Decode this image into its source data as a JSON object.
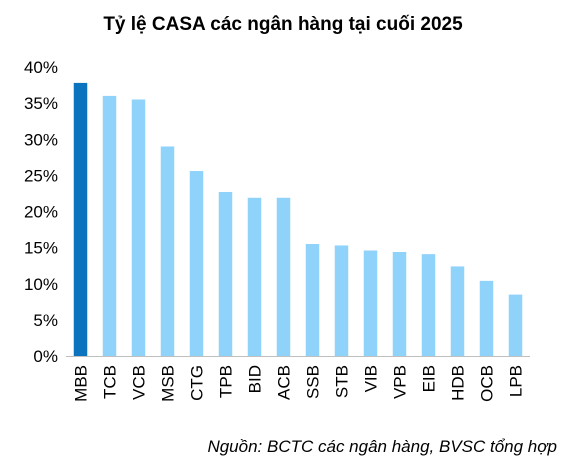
{
  "colors": {
    "highlight_bar": "#0c74bf",
    "bar": "#8fd3fb",
    "axis": "#bfbfbf"
  },
  "source": "Nguồn: BCTC các ngân hàng, BVSC tổng hợp",
  "chart_data": {
    "type": "bar",
    "title": "Tỷ lệ CASA các ngân hàng tại cuối 2025",
    "xlabel": "",
    "ylabel": "",
    "ylim": [
      0,
      40
    ],
    "y_ticks": [
      0,
      5,
      10,
      15,
      20,
      25,
      30,
      35,
      40
    ],
    "y_tick_labels": [
      "0%",
      "5%",
      "10%",
      "15%",
      "20%",
      "25%",
      "30%",
      "35%",
      "40%"
    ],
    "grid": false,
    "highlighted_category": "MBB",
    "categories": [
      "MBB",
      "TCB",
      "VCB",
      "MSB",
      "CTG",
      "TPB",
      "BID",
      "ACB",
      "SSB",
      "STB",
      "VIB",
      "VPB",
      "EIB",
      "HDB",
      "OCB",
      "LPB"
    ],
    "values": [
      37.8,
      36.0,
      35.5,
      29.0,
      25.6,
      22.7,
      21.9,
      21.9,
      15.5,
      15.3,
      14.6,
      14.4,
      14.1,
      12.4,
      10.4,
      8.5
    ]
  }
}
